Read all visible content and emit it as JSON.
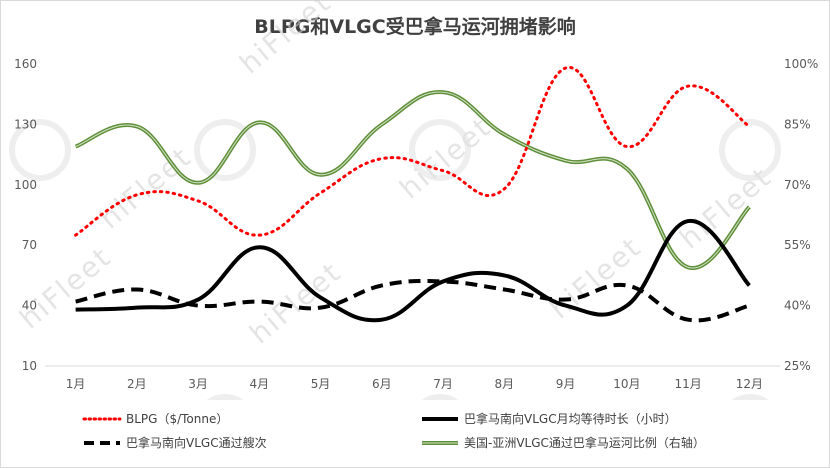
{
  "chart_data": {
    "type": "line",
    "title": "BLPG和VLGC受巴拿马运河拥堵影响",
    "categories": [
      "1月",
      "2月",
      "3月",
      "4月",
      "5月",
      "6月",
      "7月",
      "8月",
      "9月",
      "10月",
      "11月",
      "12月"
    ],
    "y_left": {
      "lim": [
        10,
        160
      ],
      "ticks": [
        "10",
        "40",
        "70",
        "100",
        "130",
        "160"
      ]
    },
    "y_right": {
      "lim": [
        25,
        100
      ],
      "ticks": [
        "25%",
        "40%",
        "55%",
        "70%",
        "85%",
        "100%"
      ]
    },
    "series": [
      {
        "name": "BLPG（$/Tonne）",
        "axis": "left",
        "style": "dotted",
        "color": "#ff0000",
        "values": [
          75,
          95,
          92,
          75,
          96,
          113,
          107,
          98,
          158,
          119,
          149,
          129
        ]
      },
      {
        "name": "巴拿马南向VLGC通过艘次",
        "axis": "left",
        "style": "dashed",
        "color": "#000000",
        "values": [
          42,
          48,
          40,
          42,
          39,
          50,
          52,
          48,
          43,
          50,
          33,
          40
        ]
      },
      {
        "name": "巴拿马南向VLGC月均等待时长（小时）",
        "axis": "left",
        "style": "solid-bold",
        "color": "#000000",
        "values": [
          38,
          39,
          43,
          69,
          44,
          33,
          52,
          55,
          40,
          40,
          82,
          50
        ]
      },
      {
        "name": "美国-亚洲VLGC通过巴拿马运河比例（右轴）",
        "axis": "right",
        "style": "solid-green",
        "color": "#5f8f3a",
        "values": [
          79.5,
          84.5,
          70.5,
          85.5,
          72.5,
          85,
          93,
          82.5,
          76,
          74,
          49.5,
          64.5
        ]
      }
    ],
    "grid": false,
    "legend_position": "bottom",
    "watermark": "hiFleet"
  }
}
